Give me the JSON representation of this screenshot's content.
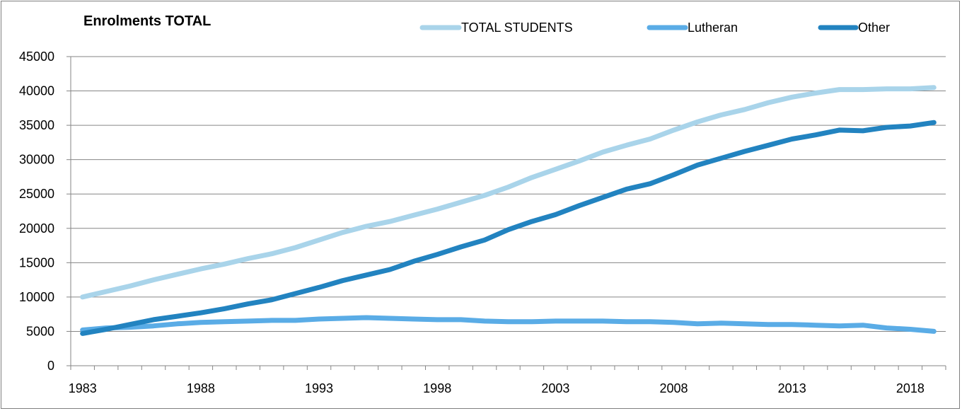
{
  "chart_data": {
    "type": "line",
    "title": "Enrolments TOTAL",
    "xlabel": "",
    "ylabel": "",
    "ylim": [
      0,
      45000
    ],
    "yticks": [
      "0",
      "5000",
      "10000",
      "15000",
      "20000",
      "25000",
      "30000",
      "35000",
      "40000",
      "45000"
    ],
    "xlim": [
      1983,
      2019
    ],
    "xticks": [
      "1983",
      "1988",
      "1993",
      "1998",
      "2003",
      "2008",
      "2013",
      "2018"
    ],
    "grid": "horizontal",
    "legend": "top",
    "x": [
      1983,
      1984,
      1985,
      1986,
      1987,
      1988,
      1989,
      1990,
      1991,
      1992,
      1993,
      1994,
      1995,
      1996,
      1997,
      1998,
      1999,
      2000,
      2001,
      2002,
      2003,
      2004,
      2005,
      2006,
      2007,
      2008,
      2009,
      2010,
      2011,
      2012,
      2013,
      2014,
      2015,
      2016,
      2017,
      2018,
      2019
    ],
    "series": [
      {
        "name": "TOTAL STUDENTS",
        "color": "#a9d4ea",
        "values": [
          10000,
          10800,
          11600,
          12500,
          13300,
          14100,
          14800,
          15600,
          16300,
          17200,
          18300,
          19400,
          20300,
          21000,
          21900,
          22800,
          23800,
          24800,
          26000,
          27400,
          28600,
          29800,
          31100,
          32100,
          33000,
          34300,
          35500,
          36500,
          37300,
          38300,
          39100,
          39700,
          40200,
          40200,
          40300,
          40300,
          40500
        ]
      },
      {
        "name": "Lutheran",
        "color": "#5aace6",
        "values": [
          5200,
          5500,
          5600,
          5800,
          6100,
          6300,
          6400,
          6500,
          6600,
          6600,
          6800,
          6900,
          7000,
          6900,
          6800,
          6700,
          6700,
          6500,
          6400,
          6400,
          6500,
          6500,
          6500,
          6400,
          6400,
          6300,
          6100,
          6200,
          6100,
          6000,
          6000,
          5900,
          5800,
          5900,
          5500,
          5300,
          5000
        ]
      },
      {
        "name": "Other",
        "color": "#2283c0",
        "values": [
          4700,
          5300,
          6000,
          6700,
          7200,
          7700,
          8300,
          9000,
          9600,
          10500,
          11400,
          12400,
          13200,
          14000,
          15200,
          16200,
          17300,
          18300,
          19800,
          21000,
          22000,
          23300,
          24500,
          25700,
          26500,
          27800,
          29200,
          30200,
          31200,
          32100,
          33000,
          33600,
          34300,
          34200,
          34700,
          34900,
          35400
        ]
      }
    ]
  }
}
